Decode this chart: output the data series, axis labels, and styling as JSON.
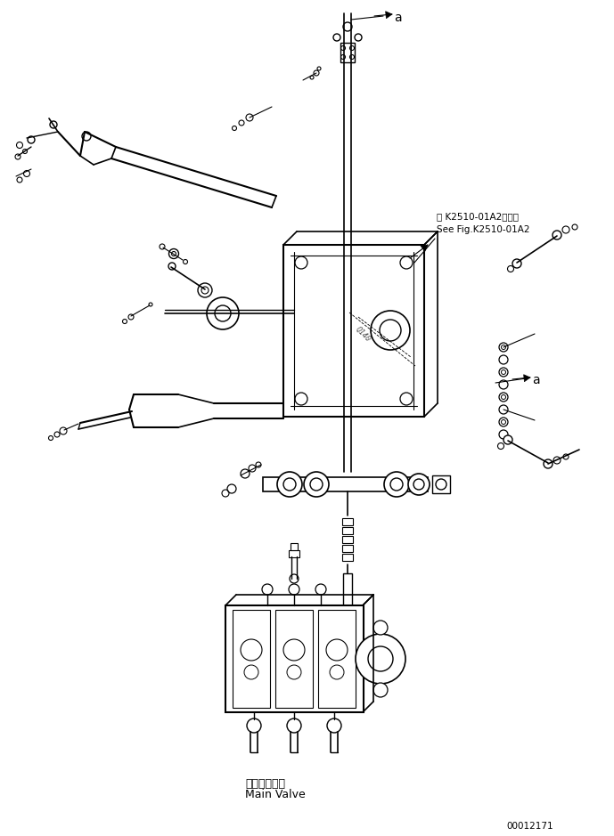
{
  "bg_color": "#ffffff",
  "annotation_a_top": "a",
  "annotation_a_mid": "a",
  "ref_text_line1": "第 K2510-01A2図参照",
  "ref_text_line2": "See Fig.K2510-01A2",
  "label_main_valve_jp": "メインバルブ",
  "label_main_valve_en": "Main Valve",
  "part_number": "00012171",
  "line_color": "#000000",
  "text_color": "#000000",
  "figsize": [
    6.89,
    9.39
  ],
  "dpi": 100
}
